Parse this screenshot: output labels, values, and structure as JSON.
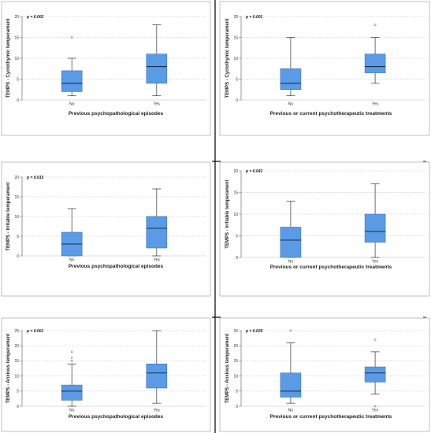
{
  "figure": {
    "colors": {
      "box_fill": "#5b9be6",
      "box_stroke": "#3a6fb0",
      "median": "#1f2e44",
      "grid": "#bdbdbd",
      "frame": "#9a9a9a",
      "divider": "#000000"
    }
  },
  "chart_data": [
    {
      "type": "box",
      "pvalue": "p = 0.002",
      "ylabel": "TEMPS - Cyclothymic temperament",
      "xlabel": "Previous psychopathological episodes",
      "ylim": [
        0,
        20
      ],
      "yticks": [
        0,
        5,
        10,
        15,
        20
      ],
      "categories": [
        "No",
        "Yes"
      ],
      "boxes": [
        {
          "min": 1,
          "q1": 2,
          "median": 4,
          "q3": 7,
          "max": 10,
          "outliers": [
            15
          ]
        },
        {
          "min": 1,
          "q1": 4,
          "median": 8,
          "q3": 11,
          "max": 18,
          "outliers": []
        }
      ]
    },
    {
      "type": "box",
      "pvalue": "p = 0.001",
      "ylabel": "TEMPS - Cyclothymic temperament",
      "xlabel": "Previous or current psychotherapeutic treatments",
      "ylim": [
        0,
        20
      ],
      "yticks": [
        0,
        5,
        10,
        15,
        20
      ],
      "categories": [
        "No",
        "Yes"
      ],
      "boxes": [
        {
          "min": 1,
          "q1": 2.5,
          "median": 4,
          "q3": 7.5,
          "max": 15,
          "outliers": []
        },
        {
          "min": 4,
          "q1": 6.5,
          "median": 8,
          "q3": 11,
          "max": 15,
          "outliers": [
            18
          ]
        }
      ]
    },
    {
      "type": "box",
      "pvalue": "p = 0.015",
      "ylabel": "TEMPS - Irritable temperament",
      "xlabel": "Previous psychopathological episodes",
      "ylim": [
        0,
        20
      ],
      "yticks": [
        0,
        5,
        10,
        15,
        20
      ],
      "categories": [
        "No",
        "Yes"
      ],
      "boxes": [
        {
          "min": 0,
          "q1": 0,
          "median": 3,
          "q3": 6,
          "max": 12,
          "outliers": []
        },
        {
          "min": 0,
          "q1": 2,
          "median": 7,
          "q3": 10,
          "max": 17,
          "outliers": []
        }
      ]
    },
    {
      "type": "box",
      "pvalue": "p = 0.041",
      "ylabel": "TEMPS - Irritable temperament",
      "xlabel": "Previous or current psychotherapeutic treatments",
      "ylim": [
        0,
        20
      ],
      "yticks": [
        0,
        5,
        10,
        15,
        20
      ],
      "categories": [
        "No",
        "Yes"
      ],
      "boxes": [
        {
          "min": 0,
          "q1": 0,
          "median": 4,
          "q3": 7,
          "max": 13,
          "outliers": []
        },
        {
          "min": 0,
          "q1": 3.5,
          "median": 6,
          "q3": 10,
          "max": 17,
          "outliers": []
        }
      ]
    },
    {
      "type": "box",
      "pvalue": "p = 0.001",
      "ylabel": "TEMPS - Anxious temperament",
      "xlabel": "Previous psychopathological episodes",
      "ylim": [
        0,
        25
      ],
      "yticks": [
        0,
        5,
        10,
        15,
        20,
        25
      ],
      "categories": [
        "No",
        "Yes"
      ],
      "boxes": [
        {
          "min": 0,
          "q1": 2,
          "median": 5,
          "q3": 7,
          "max": 14,
          "outliers": [
            15,
            16,
            18
          ]
        },
        {
          "min": 1,
          "q1": 6,
          "median": 11,
          "q3": 14,
          "max": 25,
          "outliers": []
        }
      ]
    },
    {
      "type": "box",
      "pvalue": "p = 0.029",
      "ylabel": "TEMPS - Anxious temperament",
      "xlabel": "Previous or current psychotherapeutic treatments",
      "ylim": [
        0,
        25
      ],
      "yticks": [
        0,
        5,
        10,
        15,
        20,
        25
      ],
      "categories": [
        "No",
        "Yes"
      ],
      "boxes": [
        {
          "min": 1,
          "q1": 3,
          "median": 5,
          "q3": 11,
          "max": 21,
          "outliers": [
            25
          ]
        },
        {
          "min": 4,
          "q1": 8,
          "median": 11,
          "q3": 13,
          "max": 18,
          "outliers": [
            0,
            22
          ]
        }
      ]
    }
  ]
}
